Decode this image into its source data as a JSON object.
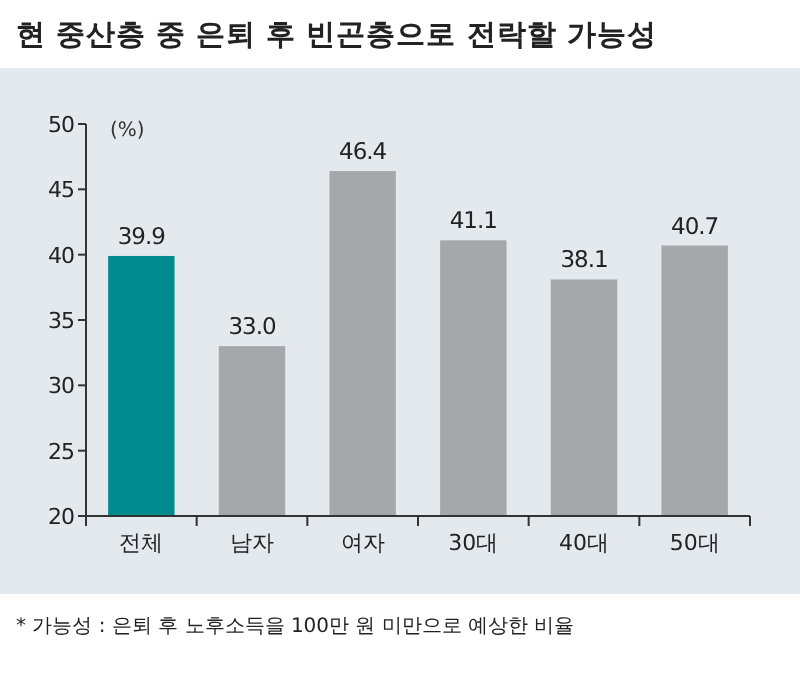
{
  "chart_data": {
    "type": "bar",
    "title": "현 중산층 중 은퇴 후 빈곤층으로 전락할 가능성",
    "ylabel": "(%)",
    "categories": [
      "전체",
      "남자",
      "여자",
      "30대",
      "40대",
      "50대"
    ],
    "values": [
      39.9,
      33.0,
      46.4,
      41.1,
      38.1,
      40.7
    ],
    "colors": [
      "#008b8f",
      "#a6a7aa",
      "#a6a7aa",
      "#a6a7aa",
      "#a6a7aa",
      "#a6a7aa"
    ],
    "value_labels": [
      "39.9",
      "33.0",
      "46.4",
      "41.1",
      "38.1",
      "40.7"
    ],
    "ylim": [
      20,
      50
    ],
    "yticks": [
      20,
      25,
      30,
      35,
      40,
      45,
      50
    ],
    "grid": false,
    "annotations": [
      "* 가능성 : 은퇴 후 노후소득을 100만 원 미만으로 예상한 비율"
    ]
  }
}
